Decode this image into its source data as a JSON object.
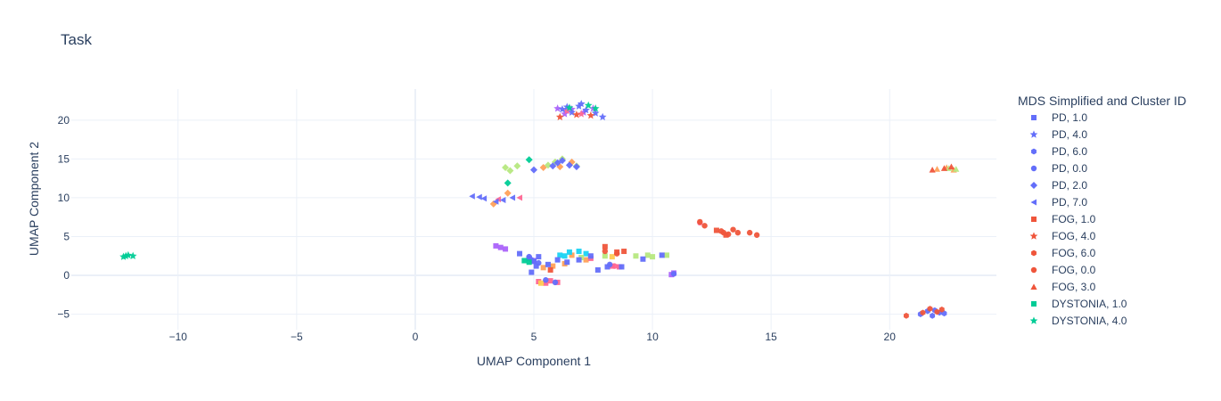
{
  "chart_data": {
    "type": "scatter",
    "title": "Task",
    "xlabel": "UMAP Component 1",
    "ylabel": "UMAP Component 2",
    "xlim": [
      -14.5,
      24.5
    ],
    "ylim": [
      -7.0,
      24.0
    ],
    "xticks": [
      -10,
      -5,
      0,
      5,
      10,
      15,
      20
    ],
    "yticks": [
      -5,
      0,
      5,
      10,
      15,
      20
    ],
    "grid": true,
    "legend_title": "MDS Simplified and Cluster ID",
    "legend_position": "right",
    "series": [
      {
        "name": "PD, 1.0",
        "color": "#636efa",
        "symbol": "square",
        "points": [
          [
            4.8,
            2.2
          ],
          [
            5.0,
            1.8
          ],
          [
            5.2,
            2.4
          ],
          [
            4.9,
            0.4
          ],
          [
            5.6,
            1.4
          ],
          [
            6.0,
            2.0
          ],
          [
            6.4,
            1.7
          ],
          [
            6.9,
            2.0
          ],
          [
            7.4,
            2.5
          ],
          [
            7.7,
            0.7
          ],
          [
            8.1,
            1.1
          ],
          [
            8.7,
            1.1
          ],
          [
            9.6,
            2.1
          ],
          [
            10.4,
            2.6
          ],
          [
            4.4,
            2.8
          ],
          [
            5.1,
            1.2
          ]
        ]
      },
      {
        "name": "PD, 4.0",
        "color": "#636efa",
        "symbol": "star",
        "points": [
          [
            6.2,
            21.4
          ],
          [
            6.6,
            21.0
          ],
          [
            6.9,
            21.8
          ],
          [
            7.2,
            21.3
          ],
          [
            7.6,
            20.9
          ],
          [
            7.9,
            20.4
          ],
          [
            6.4,
            21.7
          ],
          [
            7.0,
            22.1
          ]
        ]
      },
      {
        "name": "PD, 6.0",
        "color": "#636efa",
        "symbol": "hexagon",
        "points": [
          [
            21.3,
            -5.0
          ],
          [
            21.6,
            -4.6
          ],
          [
            21.8,
            -5.2
          ],
          [
            22.1,
            -4.8
          ],
          [
            22.3,
            -4.9
          ],
          [
            21.9,
            -4.5
          ]
        ]
      },
      {
        "name": "PD, 0.0",
        "color": "#636efa",
        "symbol": "circle",
        "points": [
          [
            4.9,
            2.0
          ],
          [
            5.2,
            1.6
          ],
          [
            5.5,
            -0.6
          ],
          [
            5.9,
            -0.9
          ],
          [
            4.8,
            2.4
          ],
          [
            8.2,
            1.4
          ],
          [
            10.9,
            0.2
          ]
        ]
      },
      {
        "name": "PD, 2.0",
        "color": "#636efa",
        "symbol": "diamond",
        "points": [
          [
            5.0,
            13.6
          ],
          [
            5.8,
            14.1
          ],
          [
            6.2,
            14.8
          ],
          [
            6.5,
            14.2
          ],
          [
            6.8,
            14.0
          ],
          [
            6.0,
            14.5
          ]
        ]
      },
      {
        "name": "PD, 7.0",
        "color": "#636efa",
        "symbol": "triangle-left",
        "points": [
          [
            2.4,
            10.2
          ],
          [
            2.7,
            10.1
          ],
          [
            2.9,
            9.9
          ],
          [
            3.4,
            9.5
          ],
          [
            3.7,
            9.7
          ],
          [
            4.1,
            10.0
          ]
        ]
      },
      {
        "name": "FOG, 1.0",
        "color": "#ef553b",
        "symbol": "square",
        "points": [
          [
            5.7,
            0.7
          ],
          [
            8.0,
            3.7
          ],
          [
            8.5,
            3.0
          ],
          [
            8.8,
            3.1
          ],
          [
            12.7,
            5.8
          ],
          [
            13.1,
            5.2
          ]
        ]
      },
      {
        "name": "FOG, 4.0",
        "color": "#ef553b",
        "symbol": "star",
        "points": [
          [
            6.1,
            20.4
          ],
          [
            6.8,
            20.7
          ],
          [
            7.4,
            20.6
          ]
        ]
      },
      {
        "name": "FOG, 6.0",
        "color": "#ef553b",
        "symbol": "hexagon",
        "points": [
          [
            21.4,
            -4.8
          ],
          [
            21.7,
            -4.3
          ],
          [
            22.0,
            -4.7
          ],
          [
            20.7,
            -5.2
          ],
          [
            22.2,
            -4.4
          ]
        ]
      },
      {
        "name": "FOG, 0.0",
        "color": "#ef553b",
        "symbol": "circle",
        "points": [
          [
            12.2,
            6.4
          ],
          [
            13.0,
            5.5
          ],
          [
            13.4,
            5.9
          ],
          [
            13.6,
            5.5
          ],
          [
            14.1,
            5.5
          ],
          [
            14.4,
            5.2
          ],
          [
            12.9,
            5.7
          ],
          [
            13.2,
            5.3
          ],
          [
            8.0,
            3.1
          ],
          [
            8.5,
            2.8
          ],
          [
            12.0,
            6.9
          ]
        ]
      },
      {
        "name": "FOG, 3.0",
        "color": "#ef553b",
        "symbol": "triangle-up",
        "points": [
          [
            21.8,
            13.6
          ],
          [
            22.3,
            13.8
          ],
          [
            22.6,
            14.0
          ]
        ]
      },
      {
        "name": "DYSTONIA, 1.0",
        "color": "#00cc96",
        "symbol": "square",
        "points": [
          [
            4.6,
            1.9
          ],
          [
            4.8,
            1.7
          ]
        ]
      },
      {
        "name": "DYSTONIA, 4.0",
        "color": "#00cc96",
        "symbol": "star",
        "points": [
          [
            -12.3,
            2.4
          ],
          [
            -12.1,
            2.6
          ],
          [
            -11.9,
            2.5
          ],
          [
            -12.2,
            2.5
          ],
          [
            6.5,
            21.6
          ],
          [
            7.3,
            21.9
          ],
          [
            7.6,
            21.5
          ]
        ]
      }
    ],
    "extra_markers": [
      {
        "color": "#ab63fa",
        "symbol": "square",
        "points": [
          [
            3.4,
            3.8
          ],
          [
            3.6,
            3.6
          ],
          [
            3.8,
            3.4
          ],
          [
            4.8,
            2.2
          ],
          [
            5.0,
            1.9
          ],
          [
            10.9,
            0.3
          ],
          [
            10.8,
            0.1
          ]
        ]
      },
      {
        "color": "#ab63fa",
        "symbol": "star",
        "points": [
          [
            6.0,
            21.5
          ],
          [
            6.6,
            21.4
          ],
          [
            7.1,
            21.0
          ],
          [
            7.5,
            21.5
          ],
          [
            6.3,
            20.8
          ]
        ]
      },
      {
        "color": "#ffa15a",
        "symbol": "square",
        "points": [
          [
            5.8,
            1.2
          ],
          [
            6.3,
            1.5
          ],
          [
            7.2,
            2.0
          ],
          [
            5.4,
            1.0
          ],
          [
            6.6,
            2.6
          ]
        ]
      },
      {
        "color": "#ffa15a",
        "symbol": "diamond",
        "points": [
          [
            5.4,
            13.9
          ],
          [
            6.1,
            14.0
          ],
          [
            6.6,
            14.6
          ],
          [
            3.3,
            9.2
          ],
          [
            3.9,
            10.6
          ]
        ]
      },
      {
        "color": "#ffa15a",
        "symbol": "triangle-up",
        "points": [
          [
            22.0,
            13.7
          ],
          [
            22.4,
            13.9
          ],
          [
            22.7,
            13.6
          ]
        ]
      },
      {
        "color": "#19d3f3",
        "symbol": "square",
        "points": [
          [
            6.3,
            2.5
          ],
          [
            6.5,
            3.0
          ],
          [
            6.9,
            3.1
          ],
          [
            7.2,
            2.8
          ],
          [
            6.1,
            2.6
          ]
        ]
      },
      {
        "color": "#ff6692",
        "symbol": "square",
        "points": [
          [
            5.2,
            -0.8
          ],
          [
            5.5,
            -1.0
          ],
          [
            5.7,
            -0.7
          ],
          [
            6.0,
            -0.9
          ],
          [
            8.3,
            1.2
          ],
          [
            8.6,
            1.1
          ],
          [
            7.4,
            2.2
          ]
        ]
      },
      {
        "color": "#ff6692",
        "symbol": "star",
        "points": [
          [
            6.4,
            21.2
          ],
          [
            7.0,
            20.8
          ]
        ]
      },
      {
        "color": "#ff6692",
        "symbol": "circle",
        "points": [
          [
            12.0,
            6.8
          ],
          [
            8.4,
            1.2
          ]
        ]
      },
      {
        "color": "#ff6692",
        "symbol": "triangle-left",
        "points": [
          [
            3.5,
            9.8
          ],
          [
            4.4,
            10.0
          ]
        ]
      },
      {
        "color": "#b6e880",
        "symbol": "square",
        "points": [
          [
            9.3,
            2.5
          ],
          [
            9.8,
            2.6
          ],
          [
            10.0,
            2.4
          ],
          [
            10.6,
            2.6
          ],
          [
            8.0,
            2.5
          ],
          [
            7.0,
            2.3
          ]
        ]
      },
      {
        "color": "#b6e880",
        "symbol": "diamond",
        "points": [
          [
            3.8,
            13.9
          ],
          [
            4.0,
            13.5
          ],
          [
            4.3,
            14.1
          ],
          [
            5.6,
            14.2
          ],
          [
            6.2,
            15.0
          ],
          [
            6.8,
            14.1
          ],
          [
            5.9,
            14.6
          ]
        ]
      },
      {
        "color": "#b6e880",
        "symbol": "triangle-up",
        "points": [
          [
            22.5,
            13.8
          ],
          [
            22.8,
            13.7
          ]
        ]
      },
      {
        "color": "#00cc96",
        "symbol": "diamond",
        "points": [
          [
            4.8,
            14.9
          ],
          [
            3.9,
            11.9
          ]
        ]
      },
      {
        "color": "#fecb52",
        "symbol": "square",
        "points": [
          [
            5.3,
            -1.0
          ],
          [
            8.3,
            2.4
          ]
        ]
      }
    ]
  }
}
